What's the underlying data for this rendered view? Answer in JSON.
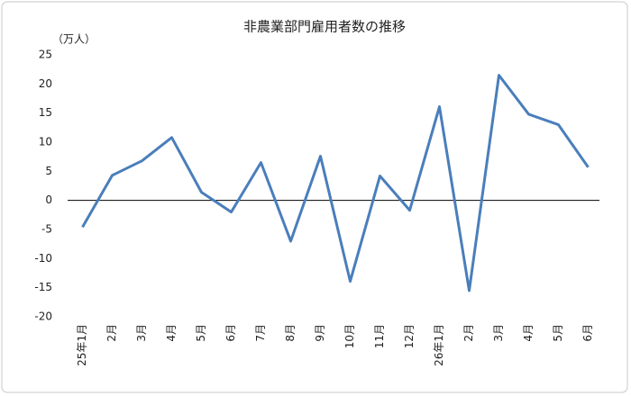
{
  "chart_data": {
    "type": "line",
    "title": "非農業部門雇用者数の推移",
    "y_label": "（万人）",
    "categories": [
      "25年1月",
      "2月",
      "3月",
      "4月",
      "5月",
      "6月",
      "7月",
      "8月",
      "9月",
      "10月",
      "11月",
      "12月",
      "26年1月",
      "2月",
      "3月",
      "4月",
      "5月",
      "6月"
    ],
    "values": [
      -4.6,
      4.3,
      6.8,
      10.8,
      1.4,
      -2.0,
      6.5,
      -7.0,
      7.6,
      -13.9,
      4.2,
      -1.7,
      16.1,
      -15.5,
      21.5,
      14.8,
      13.0,
      5.7
    ],
    "color": "#4a7ebb",
    "ylim": [
      -20,
      25
    ],
    "yticks": [
      -20,
      -15,
      -10,
      -5,
      0,
      5,
      10,
      15,
      20,
      25
    ],
    "grid": false
  }
}
